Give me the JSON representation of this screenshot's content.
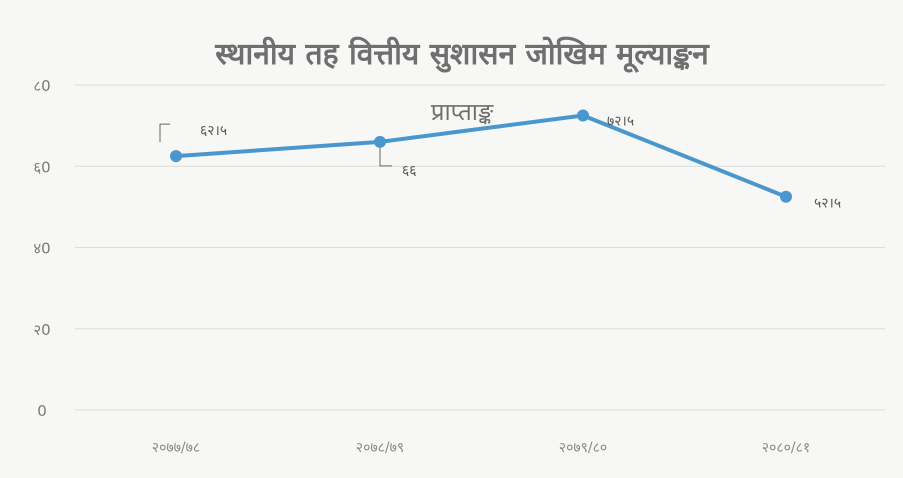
{
  "chart_data": {
    "type": "line",
    "title": "स्थानीय तह वित्तीय सुशासन जोखिम मूल्याङ्कन",
    "subtitle": "प्राप्ताङ्क",
    "categories": [
      "२०७७/७८",
      "२०७८/७९",
      "२०७९/८०",
      "२०८०/८१"
    ],
    "series": [
      {
        "values": [
          62.5,
          66,
          72.5,
          52.5
        ],
        "labels": [
          "६२।५",
          "६६",
          "७२।५",
          "५२।५"
        ],
        "color": "#4a97cf"
      }
    ],
    "yticks": [
      0,
      20,
      40,
      60,
      80
    ],
    "ytick_labels": [
      "0",
      "२0",
      "४0",
      "६0",
      "८0"
    ],
    "ylim": [
      0,
      80
    ],
    "grid": true
  }
}
